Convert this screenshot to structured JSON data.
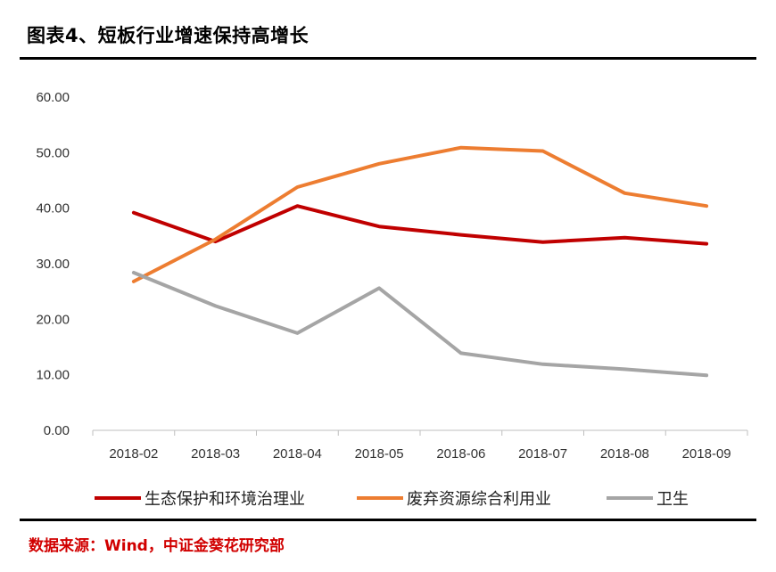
{
  "title": "图表4、短板行业增速保持高增长",
  "source": "数据来源：Wind，中证金葵花研究部",
  "chart_data": {
    "type": "line",
    "categories": [
      "2018-02",
      "2018-03",
      "2018-04",
      "2018-05",
      "2018-06",
      "2018-07",
      "2018-08",
      "2018-09"
    ],
    "ylim": [
      0,
      60
    ],
    "yticks": [
      "0.00",
      "10.00",
      "20.00",
      "30.00",
      "40.00",
      "50.00",
      "60.00"
    ],
    "series": [
      {
        "name": "生态保护和环境治理业",
        "color": "#c00000",
        "values": [
          39.2,
          34.0,
          40.4,
          36.7,
          35.2,
          33.9,
          34.7,
          33.6
        ]
      },
      {
        "name": "废弃资源综合利用业",
        "color": "#ed7d31",
        "values": [
          26.8,
          34.4,
          43.8,
          48.0,
          50.9,
          50.3,
          42.7,
          40.4
        ]
      },
      {
        "name": "卫生",
        "color": "#a5a5a5",
        "values": [
          28.4,
          22.4,
          17.5,
          25.6,
          13.9,
          11.9,
          11.0,
          9.9
        ]
      }
    ]
  }
}
